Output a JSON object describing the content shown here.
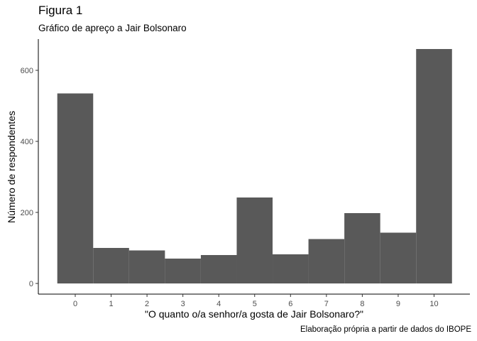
{
  "title": "Figura 1",
  "subtitle": "Gráfico de apreço a Jair Bolsonaro",
  "caption": "Elaboração própria a partir de dados do IBOPE",
  "chart_data": {
    "type": "bar",
    "categories": [
      "0",
      "1",
      "2",
      "3",
      "4",
      "5",
      "6",
      "7",
      "8",
      "9",
      "10"
    ],
    "values": [
      535,
      100,
      93,
      70,
      80,
      242,
      82,
      125,
      198,
      143,
      660
    ],
    "xlabel": "\"O quanto o/a senhor/a gosta de Jair Bolsonaro?\"",
    "ylabel": "Número de respondentes",
    "yticks": [
      0,
      200,
      400,
      600
    ],
    "ylim": [
      0,
      690
    ],
    "grid": false,
    "bar_color": "#595959"
  }
}
